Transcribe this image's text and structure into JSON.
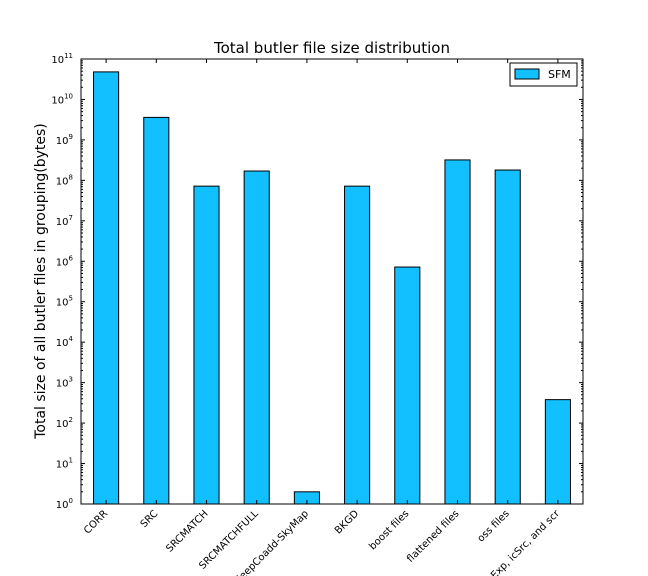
{
  "chart_data": {
    "type": "bar",
    "title": "Total butler file size distribution",
    "xlabel": "",
    "ylabel": "Total size of all butler files in grouping(bytes)",
    "yscale": "log",
    "ylim": [
      1,
      100000000000
    ],
    "ytick_exponents": [
      "0",
      "1",
      "2",
      "3",
      "4",
      "5",
      "6",
      "7",
      "8",
      "9",
      "10",
      "11"
    ],
    "ytick_base": "10",
    "categories": [
      "CORR",
      "SRC",
      "SRCMATCH",
      "SRCMATCHFULL",
      "deepCoadd-SkyMap",
      "BKGD",
      "boost files",
      "flattened files",
      "oss files",
      "icExp, icSrc, and scr"
    ],
    "series": [
      {
        "name": "SFM",
        "color": "#12bfff",
        "values": [
          48000000000,
          3600000000,
          72000000,
          170000000,
          2,
          72000000,
          720000,
          320000000,
          180000000,
          380
        ]
      }
    ],
    "legend": "top-right",
    "grid": false
  }
}
